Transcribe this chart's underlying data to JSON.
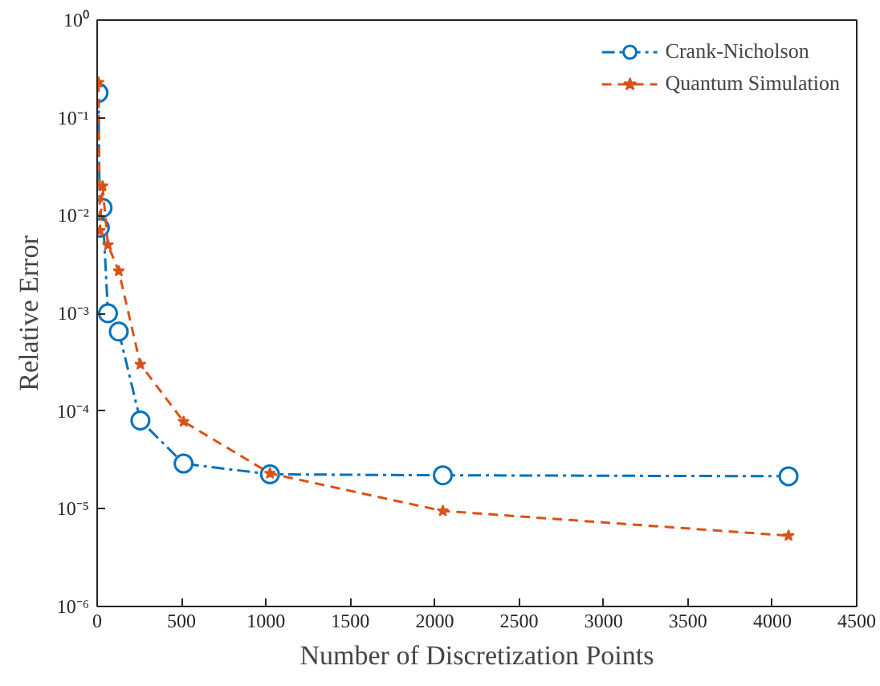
{
  "chart_data": {
    "type": "line",
    "xlabel": "Number of Discretization Points",
    "ylabel": "Relative Error",
    "log": "y",
    "grid": false,
    "legend": "top right",
    "xlim": [
      0,
      4500
    ],
    "xticks": [
      0,
      500,
      1000,
      1500,
      2000,
      2500,
      3000,
      3500,
      4000,
      4500
    ],
    "ylim": [
      1e-06,
      1
    ],
    "yticks": [
      {
        "value": 1e-06,
        "label": "10⁻⁶"
      },
      {
        "value": 1e-05,
        "label": "10⁻⁵"
      },
      {
        "value": 0.0001,
        "label": "10⁻⁴"
      },
      {
        "value": 0.001,
        "label": "10⁻³"
      },
      {
        "value": 0.01,
        "label": "10⁻²"
      },
      {
        "value": 0.1,
        "label": "10⁻¹"
      },
      {
        "value": 1,
        "label": "10⁰"
      }
    ],
    "series": [
      {
        "name": "Crank-Nicholson",
        "color": "#0072bd",
        "marker": "circle",
        "line_style": "dashdot",
        "x": [
          8,
          16,
          32,
          64,
          128,
          256,
          512,
          1024,
          2048,
          4096
        ],
        "values": [
          0.18,
          0.0075,
          0.012,
          0.001,
          0.00065,
          8e-05,
          2.9e-05,
          2.25e-05,
          2.2e-05,
          2.15e-05
        ]
      },
      {
        "name": "Quantum Simulation",
        "color": "#d95319",
        "marker": "star",
        "line_style": "dashed",
        "x": [
          8,
          16,
          32,
          64,
          128,
          256,
          512,
          1024,
          2048,
          4096
        ],
        "values": [
          0.23,
          0.007,
          0.02,
          0.005,
          0.0027,
          0.0003,
          7.8e-05,
          2.3e-05,
          9.5e-06,
          5.3e-06
        ]
      }
    ]
  }
}
